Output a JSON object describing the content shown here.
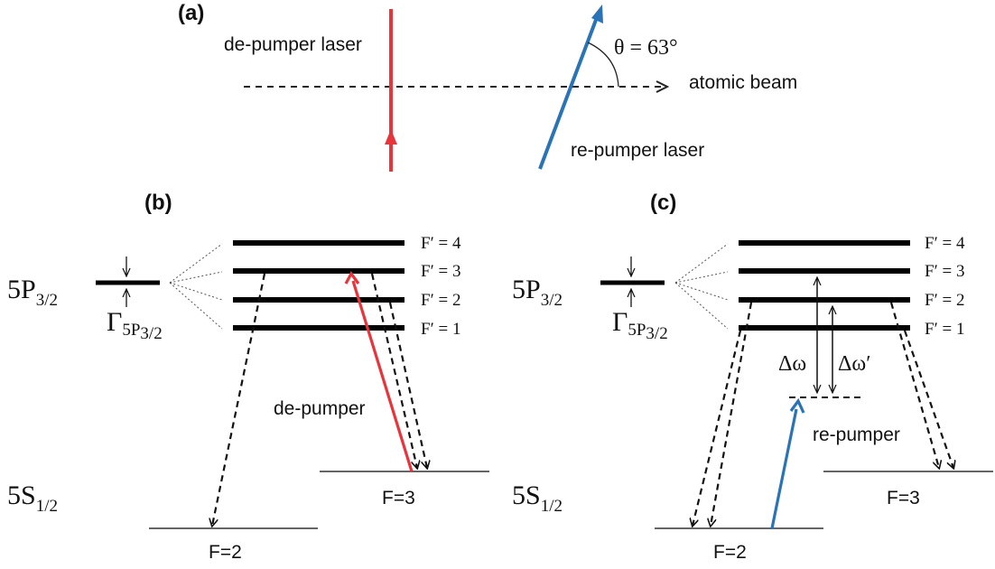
{
  "panel_a": {
    "label": "(a)",
    "depumper_laser_label": "de-pumper laser",
    "repumper_laser_label": "re-pumper laser",
    "atomic_beam_label": "atomic beam",
    "angle_label": "θ = 63°",
    "colors": {
      "depumper": "#e8353b",
      "repumper": "#2a73b6",
      "beam": "#222222"
    }
  },
  "panel_b": {
    "label": "(b)",
    "excited_state": {
      "main": "5P",
      "sub": "3/2"
    },
    "ground_state": {
      "main": "5S",
      "sub": "1/2"
    },
    "linewidth_label": {
      "main": "Γ",
      "sub": "5P",
      "subsub": "3/2"
    },
    "excited_levels": [
      "F′ = 4",
      "F′ = 3",
      "F′ = 2",
      "F′ = 1"
    ],
    "ground_levels": [
      "F=2",
      "F=3"
    ],
    "transition_label": "de-pumper"
  },
  "panel_c": {
    "label": "(c)",
    "excited_state": {
      "main": "5P",
      "sub": "3/2"
    },
    "ground_state": {
      "main": "5S",
      "sub": "1/2"
    },
    "linewidth_label": {
      "main": "Γ",
      "sub": "5P",
      "subsub": "3/2"
    },
    "excited_levels": [
      "F′ = 4",
      "F′ = 3",
      "F′ = 2",
      "F′ = 1"
    ],
    "ground_levels": [
      "F=2",
      "F=3"
    ],
    "transition_label": "re-pumper",
    "detuning_labels": [
      "Δω",
      "Δω′"
    ]
  }
}
